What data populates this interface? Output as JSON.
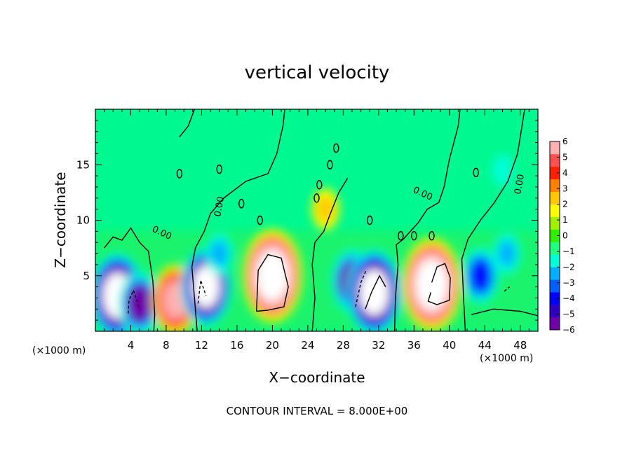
{
  "chart_data": {
    "type": "heatmap",
    "title": "vertical velocity",
    "xlabel": "X−coordinate",
    "ylabel": "Z−coordinate",
    "x_unit_left": "(×1000 m)",
    "x_unit_right": "(×1000 m)",
    "footer": "CONTOUR INTERVAL = 8.000E+00",
    "xlim": [
      0,
      50
    ],
    "ylim": [
      0,
      20
    ],
    "x_ticks": [
      "4",
      "8",
      "12",
      "16",
      "20",
      "24",
      "28",
      "32",
      "36",
      "40",
      "44",
      "48"
    ],
    "y_ticks": [
      "5",
      "10",
      "15"
    ],
    "contour_labels": [
      "0.00",
      "0.00",
      "0.00",
      "0.00"
    ],
    "colorbar": {
      "range": [
        -6,
        6
      ],
      "ticks": [
        "6",
        "5",
        "4",
        "3",
        "2",
        "1",
        "0",
        "−1",
        "−2",
        "−3",
        "−4",
        "−5",
        "−6"
      ],
      "colors": [
        "#7000a8",
        "#3000c0",
        "#0000ff",
        "#0060ff",
        "#00b0ff",
        "#00ffd8",
        "#20ff80",
        "#30f000",
        "#a0f000",
        "#ffff00",
        "#ffc800",
        "#ff8000",
        "#ff2000",
        "#ff5050",
        "#ffb0b0"
      ]
    },
    "features": [
      {
        "x": 2.5,
        "z": 3.2,
        "w": -9
      },
      {
        "x": 5.0,
        "z": 2.5,
        "w": -6
      },
      {
        "x": 9.0,
        "z": 2.8,
        "w": 7
      },
      {
        "x": 12.5,
        "z": 4.0,
        "w": -8
      },
      {
        "x": 14.0,
        "z": 7.0,
        "w": -3
      },
      {
        "x": 20.0,
        "z": 5.0,
        "w": 10
      },
      {
        "x": 26.0,
        "z": 11.0,
        "w": 3
      },
      {
        "x": 29.0,
        "z": 4.5,
        "w": -6
      },
      {
        "x": 31.5,
        "z": 3.5,
        "w": -9
      },
      {
        "x": 38.0,
        "z": 4.2,
        "w": 10
      },
      {
        "x": 43.5,
        "z": 5.0,
        "w": -5
      },
      {
        "x": 46.5,
        "z": 7.0,
        "w": -3
      },
      {
        "x": 46.0,
        "z": 14.5,
        "w": -1.5
      }
    ]
  }
}
